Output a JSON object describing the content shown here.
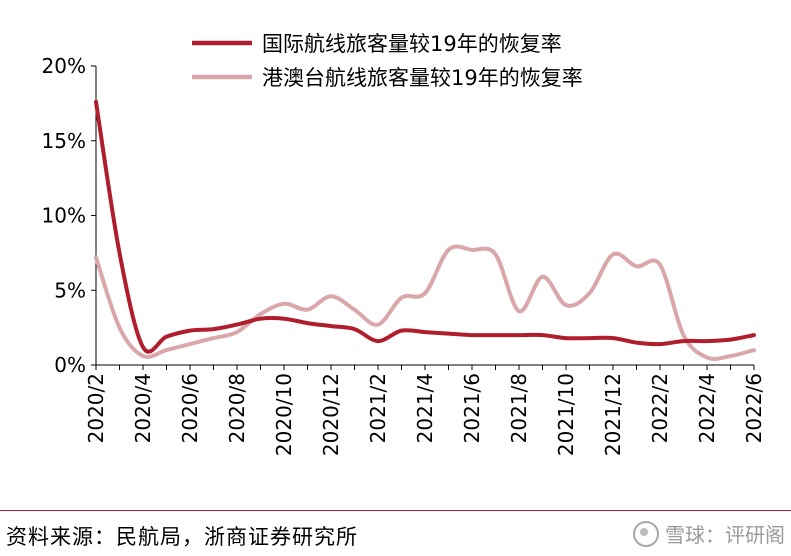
{
  "chart_data": {
    "type": "line",
    "title": "",
    "xlabel": "",
    "ylabel": "",
    "ylim": [
      0,
      20
    ],
    "y_ticks": [
      "0%",
      "5%",
      "10%",
      "15%",
      "20%"
    ],
    "x_ticks": [
      "2020/2",
      "2020/4",
      "2020/6",
      "2020/8",
      "2020/10",
      "2020/12",
      "2021/2",
      "2021/4",
      "2021/6",
      "2021/8",
      "2021/10",
      "2021/12",
      "2022/2",
      "2022/4",
      "2022/6"
    ],
    "x": [
      "2020/2",
      "2020/3",
      "2020/4",
      "2020/5",
      "2020/6",
      "2020/7",
      "2020/8",
      "2020/9",
      "2020/10",
      "2020/11",
      "2020/12",
      "2021/1",
      "2021/2",
      "2021/3",
      "2021/4",
      "2021/5",
      "2021/6",
      "2021/7",
      "2021/8",
      "2021/9",
      "2021/10",
      "2021/11",
      "2021/12",
      "2022/1",
      "2022/2",
      "2022/3",
      "2022/4",
      "2022/5",
      "2022/6"
    ],
    "series": [
      {
        "name": "国际航线旅客量较19年的恢复率",
        "color": "#b01e2d",
        "values": [
          17.6,
          7.5,
          1.2,
          1.9,
          2.3,
          2.4,
          2.7,
          3.1,
          3.1,
          2.8,
          2.6,
          2.4,
          1.6,
          2.3,
          2.2,
          2.1,
          2.0,
          2.0,
          2.0,
          2.0,
          1.8,
          1.8,
          1.8,
          1.5,
          1.4,
          1.6,
          1.6,
          1.7,
          2.0
        ]
      },
      {
        "name": "港澳台航线旅客量较19年的恢复率",
        "color": "#d9a6a9",
        "values": [
          7.2,
          2.5,
          0.6,
          1.0,
          1.4,
          1.8,
          2.2,
          3.4,
          4.1,
          3.7,
          4.6,
          3.7,
          2.7,
          4.5,
          4.8,
          7.7,
          7.7,
          7.4,
          3.6,
          5.9,
          4.0,
          4.8,
          7.4,
          6.6,
          6.7,
          2.0,
          0.5,
          0.6,
          1.0
        ]
      }
    ],
    "legend_position": "top",
    "grid": false
  },
  "footer": {
    "source": "资料来源：民航局，浙商证券研究所",
    "watermark": "雪球：评研阁"
  }
}
